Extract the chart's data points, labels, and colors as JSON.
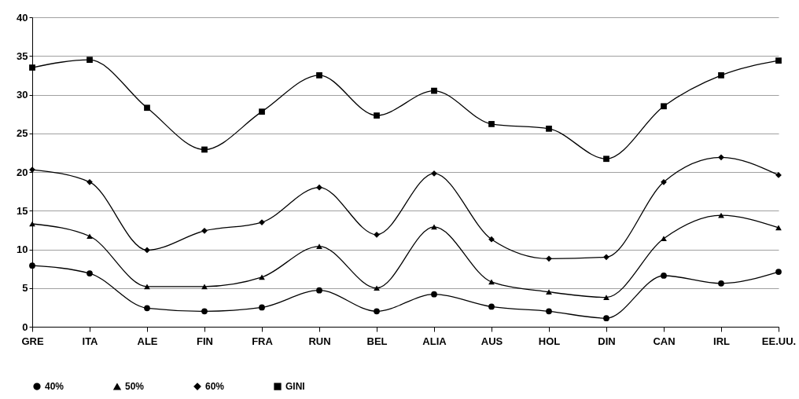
{
  "chart_data": {
    "type": "line",
    "categories": [
      "GRE",
      "ITA",
      "ALE",
      "FIN",
      "FRA",
      "RUN",
      "BEL",
      "ALIA",
      "AUS",
      "HOL",
      "DIN",
      "CAN",
      "IRL",
      "EE.UU."
    ],
    "series": [
      {
        "name": "40%",
        "color": "#000000",
        "marker": "circle",
        "values": [
          7.9,
          6.9,
          2.4,
          2.0,
          2.5,
          4.7,
          2.0,
          4.2,
          2.6,
          2.0,
          1.1,
          6.6,
          5.6,
          7.1
        ]
      },
      {
        "name": "50%",
        "color": "#000000",
        "marker": "triangle",
        "values": [
          13.3,
          11.7,
          5.2,
          5.2,
          6.4,
          10.4,
          5.0,
          12.9,
          5.8,
          4.5,
          3.8,
          11.4,
          14.4,
          12.8
        ]
      },
      {
        "name": "60%",
        "color": "#000000",
        "marker": "diamond",
        "values": [
          20.3,
          18.7,
          9.9,
          12.4,
          13.5,
          18.0,
          11.9,
          19.8,
          11.3,
          8.8,
          9.0,
          18.7,
          21.9,
          19.6
        ]
      },
      {
        "name": "GINI",
        "color": "#000000",
        "marker": "square",
        "values": [
          33.5,
          34.5,
          28.3,
          22.9,
          27.8,
          32.5,
          27.3,
          30.5,
          26.2,
          25.6,
          21.7,
          28.5,
          32.5,
          34.4
        ]
      }
    ],
    "ylim": [
      0,
      40
    ],
    "yticks": [
      0,
      5,
      10,
      15,
      20,
      25,
      30,
      35,
      40
    ],
    "grid": "y",
    "legend": "bottom"
  }
}
